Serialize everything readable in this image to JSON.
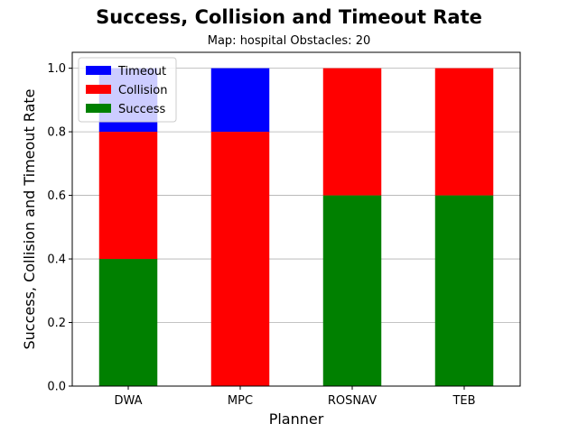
{
  "chart_data": {
    "type": "bar",
    "stacked": true,
    "title": "Success, Collision and Timeout Rate",
    "subtitle": "Map: hospital Obstacles: 20",
    "xlabel": "Planner",
    "ylabel": "Success, Collision and Timeout Rate",
    "categories": [
      "DWA",
      "MPC",
      "ROSNAV",
      "TEB"
    ],
    "series": [
      {
        "name": "Success",
        "color": "#008000",
        "values": [
          0.4,
          0.0,
          0.6,
          0.6
        ]
      },
      {
        "name": "Collision",
        "color": "#ff0000",
        "values": [
          0.4,
          0.8,
          0.4,
          0.4
        ]
      },
      {
        "name": "Timeout",
        "color": "#0000ff",
        "values": [
          0.2,
          0.2,
          0.0,
          0.0
        ]
      }
    ],
    "legend_order": [
      "Timeout",
      "Collision",
      "Success"
    ],
    "legend_position": "top-left",
    "ylim": [
      0,
      1.05
    ],
    "yticks": [
      "0.0",
      "0.2",
      "0.4",
      "0.6",
      "0.8",
      "1.0"
    ],
    "grid": "y-axis only"
  }
}
